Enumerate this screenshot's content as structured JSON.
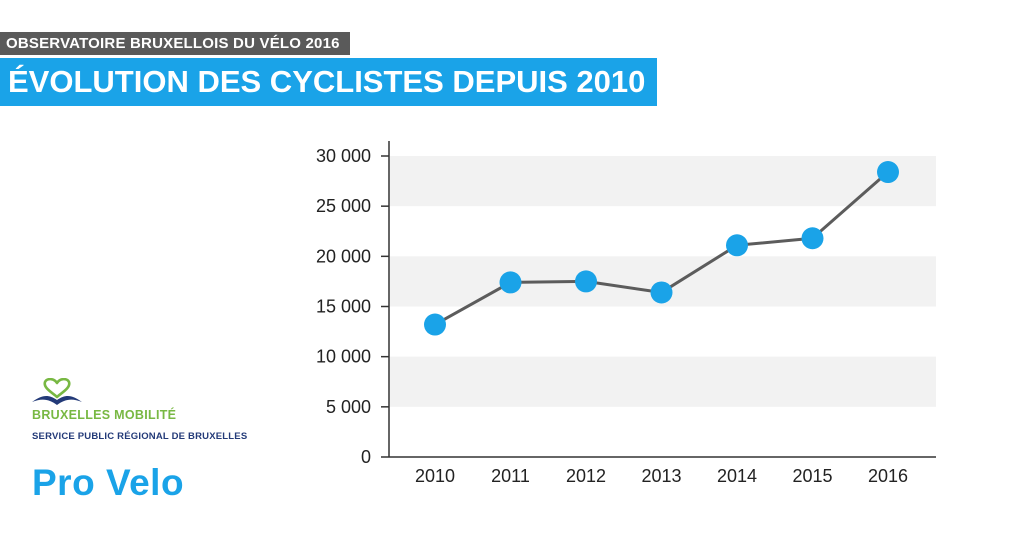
{
  "header": {
    "subtitle": "OBSERVATOIRE BRUXELLOIS DU VÉLO 2016",
    "title": "ÉVOLUTION DES CYCLISTES DEPUIS 2010"
  },
  "logos": {
    "bruxelles_mobilite_name": "BRUXELLES MOBILITÉ",
    "bruxelles_mobilite_sub": "SERVICE PUBLIC RÉGIONAL DE BRUXELLES",
    "pro_velo": "Pro Velo"
  },
  "colors": {
    "accent": "#1aa3e8",
    "subtitle_bg": "#5a5a5a",
    "line": "#5c5c5c",
    "marker": "#1aa3e8",
    "band": "#f2f2f2",
    "bm_green": "#78b843",
    "bm_navy": "#233a78"
  },
  "chart_data": {
    "type": "line",
    "x": [
      "2010",
      "2011",
      "2012",
      "2013",
      "2014",
      "2015",
      "2016"
    ],
    "series": [
      {
        "values": [
          13200,
          17400,
          17500,
          16400,
          21100,
          21800,
          28400
        ]
      }
    ],
    "ylim": [
      0,
      30000
    ],
    "yticks": [
      0,
      5000,
      10000,
      15000,
      20000,
      25000,
      30000
    ],
    "ytick_labels": [
      "0",
      "5 000",
      "10 000",
      "15 000",
      "20 000",
      "25 000",
      "30 000"
    ],
    "grid": "alternating horizontal bands",
    "legend": "none",
    "xlabel": "",
    "ylabel": ""
  }
}
